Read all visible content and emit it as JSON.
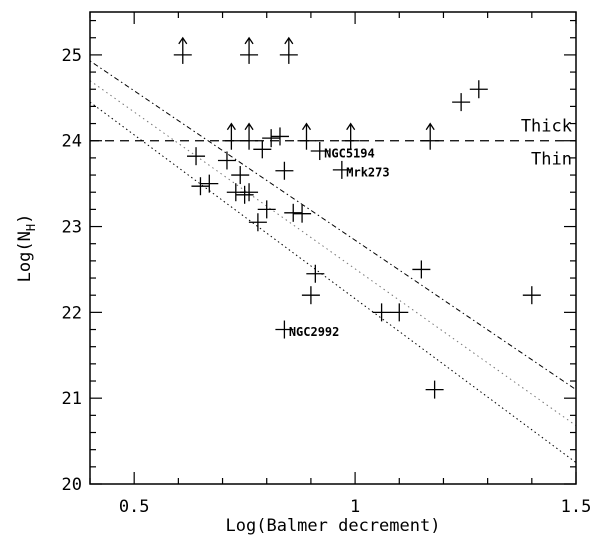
{
  "chart_data": {
    "type": "scatter",
    "xlabel": "Log(Balmer decrement)",
    "ylabel": "Log(N",
    "ylabel_sub": "H",
    "ylabel_close": ")",
    "xlim": [
      0.4,
      1.5
    ],
    "ylim": [
      20,
      25.5
    ],
    "x_ticks": [
      0.5,
      1,
      1.5
    ],
    "x_tick_labels": [
      "0.5",
      "1",
      "1.5"
    ],
    "y_ticks": [
      20,
      21,
      22,
      23,
      24,
      25
    ],
    "y_tick_labels": [
      "20",
      "21",
      "22",
      "23",
      "24",
      "25"
    ],
    "grid": false,
    "points": [
      {
        "x": 0.64,
        "y": 23.82
      },
      {
        "x": 0.65,
        "y": 23.47
      },
      {
        "x": 0.67,
        "y": 23.5
      },
      {
        "x": 0.71,
        "y": 23.77
      },
      {
        "x": 0.73,
        "y": 23.4
      },
      {
        "x": 0.74,
        "y": 23.6
      },
      {
        "x": 0.75,
        "y": 23.37
      },
      {
        "x": 0.76,
        "y": 23.4
      },
      {
        "x": 0.78,
        "y": 23.05
      },
      {
        "x": 0.79,
        "y": 23.9
      },
      {
        "x": 0.8,
        "y": 23.2
      },
      {
        "x": 0.81,
        "y": 24.03
      },
      {
        "x": 0.83,
        "y": 24.05
      },
      {
        "x": 0.84,
        "y": 23.65
      },
      {
        "x": 0.86,
        "y": 23.16
      },
      {
        "x": 0.88,
        "y": 23.15
      },
      {
        "x": 0.92,
        "y": 23.88
      },
      {
        "x": 0.97,
        "y": 23.66
      },
      {
        "x": 0.9,
        "y": 22.2
      },
      {
        "x": 0.91,
        "y": 22.45
      },
      {
        "x": 0.84,
        "y": 21.8
      },
      {
        "x": 1.06,
        "y": 22.0
      },
      {
        "x": 1.1,
        "y": 22.0
      },
      {
        "x": 1.15,
        "y": 22.5
      },
      {
        "x": 1.18,
        "y": 21.1
      },
      {
        "x": 1.24,
        "y": 24.45
      },
      {
        "x": 1.28,
        "y": 24.6
      },
      {
        "x": 1.4,
        "y": 22.2
      }
    ],
    "lower_limits": [
      {
        "x": 0.61,
        "y": 25.0
      },
      {
        "x": 0.76,
        "y": 25.0
      },
      {
        "x": 0.85,
        "y": 25.0
      },
      {
        "x": 0.72,
        "y": 24.0
      },
      {
        "x": 0.76,
        "y": 24.0
      },
      {
        "x": 0.89,
        "y": 24.0
      },
      {
        "x": 0.99,
        "y": 24.0
      },
      {
        "x": 1.17,
        "y": 24.0
      }
    ],
    "annotations": [
      {
        "text": "NGC5194",
        "x": 0.93,
        "y": 23.85
      },
      {
        "text": "Mrk273",
        "x": 0.98,
        "y": 23.63
      },
      {
        "text": "NGC2992",
        "x": 0.85,
        "y": 21.77
      }
    ],
    "threshold_line": {
      "y": 24,
      "label_above": "Thick",
      "label_below": "Thin"
    },
    "fit_lines": [
      {
        "style": "dash-dot",
        "x": [
          0.4,
          1.5
        ],
        "y": [
          24.93,
          21.1
        ]
      },
      {
        "style": "dotted-light",
        "x": [
          0.4,
          1.5
        ],
        "y": [
          24.7,
          20.68
        ]
      },
      {
        "style": "dotted",
        "x": [
          0.4,
          1.5
        ],
        "y": [
          24.45,
          20.25
        ]
      }
    ]
  }
}
